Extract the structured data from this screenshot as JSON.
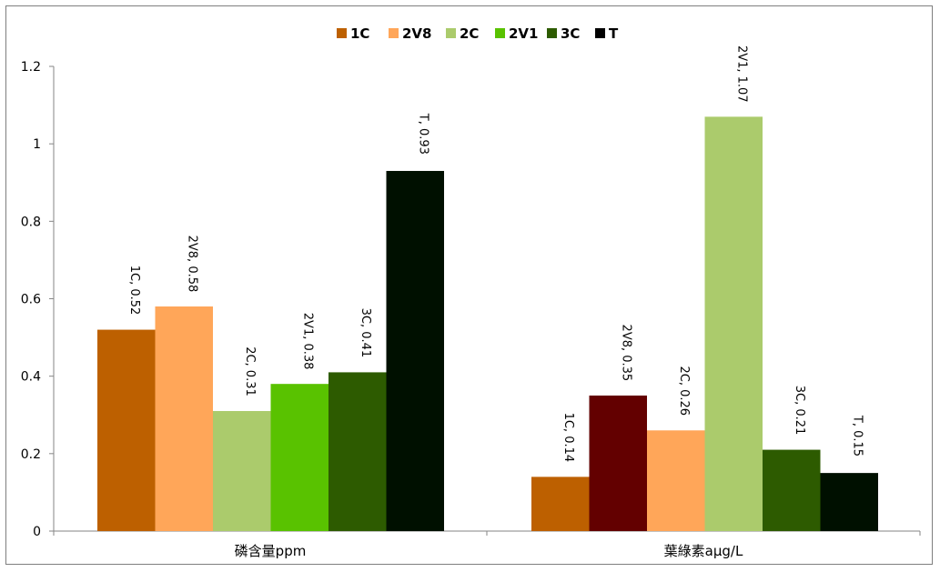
{
  "chart_data": {
    "type": "bar",
    "title": "",
    "xlabel": "",
    "ylabel": "",
    "ylim": [
      0,
      1.2
    ],
    "yticks": [
      "0",
      "0.2",
      "0.4",
      "0.6",
      "0.8",
      "1",
      "1.2"
    ],
    "ytick_values": [
      0,
      0.2,
      0.4,
      0.6,
      0.8,
      1.0,
      1.2
    ],
    "grid": false,
    "legend_position": "top",
    "legend": [
      {
        "name": "1C",
        "color": "#bd6000"
      },
      {
        "name": "2V8",
        "color": "#ffa659"
      },
      {
        "name": "2C",
        "color": "#abcb6c"
      },
      {
        "name": "2V1",
        "color": "#59c200"
      },
      {
        "name": "3C",
        "color": "#2d5b00"
      },
      {
        "name": "T",
        "color": "#000000"
      }
    ],
    "groups": [
      {
        "category": "磷含量ppm",
        "bars": [
          {
            "label": "1C, 0.52",
            "value": 0.52,
            "color": "#bd6000"
          },
          {
            "label": "2V8, 0.58",
            "value": 0.58,
            "color": "#ffa659"
          },
          {
            "label": "2C, 0.31",
            "value": 0.31,
            "color": "#abcb6c"
          },
          {
            "label": "2V1, 0.38",
            "value": 0.38,
            "color": "#59c200"
          },
          {
            "label": "3C, 0.41",
            "value": 0.41,
            "color": "#2d5b00"
          },
          {
            "label": "T, 0.93",
            "value": 0.93,
            "color": "#001000"
          }
        ]
      },
      {
        "category": "葉綠素aμg/L",
        "bars": [
          {
            "label": "1C, 0.14",
            "value": 0.14,
            "color": "#bd6000"
          },
          {
            "label": "2V8, 0.35",
            "value": 0.35,
            "color": "#630000"
          },
          {
            "label": "2C, 0.26",
            "value": 0.26,
            "color": "#ffa659"
          },
          {
            "label": "2V1, 1.07",
            "value": 1.07,
            "color": "#abcb6c"
          },
          {
            "label": "3C, 0.21",
            "value": 0.21,
            "color": "#2d5b00"
          },
          {
            "label": "T, 0.15",
            "value": 0.15,
            "color": "#001000"
          }
        ]
      }
    ]
  }
}
